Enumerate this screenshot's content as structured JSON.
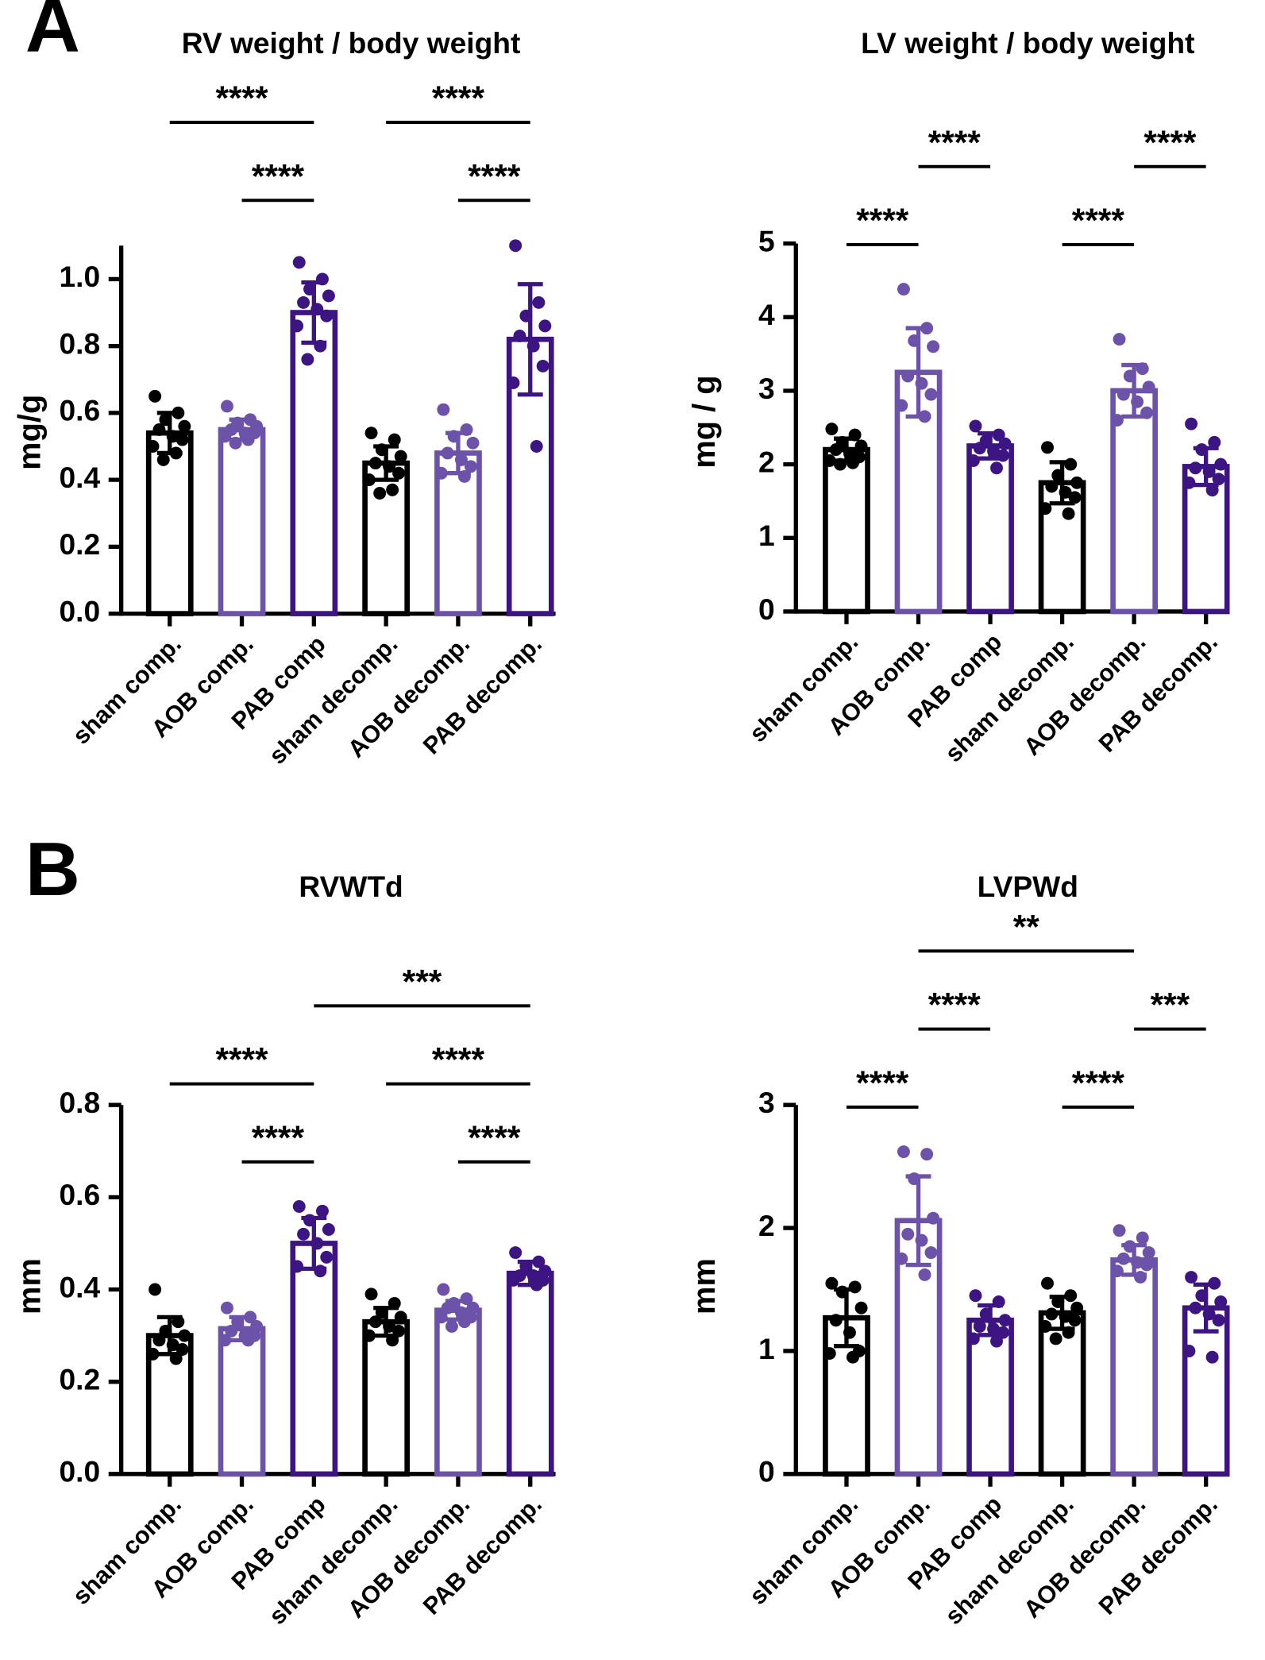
{
  "chart_data": [
    {
      "type": "bar",
      "panel_label": "A",
      "title": "RV weight / body weight",
      "y_label": "mg/g",
      "categories": [
        "sham comp.",
        "AOB comp.",
        "PAB comp",
        "sham decomp.",
        "AOB decomp.",
        "PAB decomp."
      ],
      "colors": [
        "#000000",
        "#6c52a8",
        "#3c1582",
        "#000000",
        "#6c52a8",
        "#3c1582"
      ],
      "values": [
        0.54,
        0.55,
        0.9,
        0.45,
        0.48,
        0.82
      ],
      "errors": [
        0.06,
        0.03,
        0.09,
        0.05,
        0.06,
        0.165
      ],
      "points": [
        [
          0.65,
          0.6,
          0.58,
          0.56,
          0.55,
          0.53,
          0.52,
          0.5,
          0.48,
          0.46
        ],
        [
          0.62,
          0.58,
          0.57,
          0.56,
          0.55,
          0.54,
          0.54,
          0.53,
          0.52,
          0.51
        ],
        [
          1.05,
          1.0,
          0.97,
          0.95,
          0.93,
          0.91,
          0.89,
          0.86,
          0.8,
          0.76
        ],
        [
          0.54,
          0.52,
          0.49,
          0.47,
          0.45,
          0.44,
          0.42,
          0.4,
          0.37,
          0.36
        ],
        [
          0.61,
          0.55,
          0.53,
          0.51,
          0.48,
          0.46,
          0.44,
          0.42,
          0.41
        ],
        [
          1.1,
          0.93,
          0.89,
          0.86,
          0.83,
          0.8,
          0.74,
          0.69,
          0.5
        ]
      ],
      "ylim": [
        0,
        1.1
      ],
      "yticks": [
        {
          "value": 0,
          "label": "0.0"
        },
        0.2,
        0.4,
        0.6,
        0.8,
        {
          "value": 1,
          "label": "1.0"
        }
      ],
      "brackets": [
        {
          "from": "AOB comp.",
          "to": "PAB comp",
          "label": "****"
        },
        {
          "from": "AOB decomp.",
          "to": "PAB decomp.",
          "label": "****"
        },
        {
          "from": "sham comp.",
          "to": "PAB comp",
          "label": "****"
        },
        {
          "from": "sham decomp.",
          "to": "PAB decomp.",
          "label": "****"
        }
      ]
    },
    {
      "type": "bar",
      "title": "LV weight / body weight",
      "y_label": "mg / g",
      "categories": [
        "sham comp.",
        "AOB comp.",
        "PAB comp",
        "sham decomp.",
        "AOB decomp.",
        "PAB decomp."
      ],
      "colors": [
        "#000000",
        "#6c52a8",
        "#3c1582",
        "#000000",
        "#6c52a8",
        "#3c1582"
      ],
      "values": [
        2.2,
        3.25,
        2.25,
        1.75,
        3.0,
        1.97
      ],
      "errors": [
        0.15,
        0.6,
        0.17,
        0.28,
        0.35,
        0.25
      ],
      "points": [
        [
          2.48,
          2.4,
          2.3,
          2.25,
          2.2,
          2.15,
          2.1,
          2.05,
          2.02,
          2.0
        ],
        [
          4.38,
          3.85,
          3.68,
          3.6,
          3.2,
          3.1,
          2.95,
          2.8,
          2.65
        ],
        [
          2.52,
          2.4,
          2.32,
          2.28,
          2.22,
          2.18,
          2.12,
          2.05,
          1.95
        ],
        [
          2.23,
          2.0,
          1.85,
          1.75,
          1.7,
          1.62,
          1.55,
          1.4,
          1.33
        ],
        [
          3.7,
          3.3,
          3.2,
          3.05,
          2.95,
          2.85,
          2.7,
          2.6
        ],
        [
          2.55,
          2.3,
          2.2,
          2.0,
          1.95,
          1.9,
          1.8,
          1.75,
          1.65
        ]
      ],
      "ylim": [
        0,
        5
      ],
      "yticks": [
        0,
        1,
        2,
        3,
        4,
        5
      ],
      "brackets": [
        {
          "from": "sham comp.",
          "to": "AOB comp.",
          "label": "****"
        },
        {
          "from": "sham decomp.",
          "to": "AOB decomp.",
          "label": "****"
        },
        {
          "from": "AOB comp.",
          "to": "PAB comp",
          "label": "****"
        },
        {
          "from": "AOB decomp.",
          "to": "PAB decomp.",
          "label": "****"
        }
      ]
    },
    {
      "type": "bar",
      "panel_label": "B",
      "title": "RVWTd",
      "y_label": "mm",
      "categories": [
        "sham comp.",
        "AOB comp.",
        "PAB comp",
        "sham decomp.",
        "AOB decomp.",
        "PAB decomp."
      ],
      "colors": [
        "#000000",
        "#6c52a8",
        "#3c1582",
        "#000000",
        "#6c52a8",
        "#3c1582"
      ],
      "values": [
        0.3,
        0.315,
        0.5,
        0.33,
        0.355,
        0.435
      ],
      "errors": [
        0.04,
        0.025,
        0.055,
        0.03,
        0.02,
        0.025
      ],
      "points": [
        [
          0.4,
          0.33,
          0.31,
          0.3,
          0.29,
          0.28,
          0.27,
          0.26,
          0.25
        ],
        [
          0.36,
          0.34,
          0.33,
          0.32,
          0.31,
          0.3,
          0.3,
          0.29,
          0.29
        ],
        [
          0.58,
          0.57,
          0.55,
          0.53,
          0.52,
          0.5,
          0.47,
          0.45,
          0.44
        ],
        [
          0.39,
          0.37,
          0.35,
          0.34,
          0.33,
          0.32,
          0.31,
          0.3,
          0.29
        ],
        [
          0.4,
          0.38,
          0.37,
          0.36,
          0.36,
          0.35,
          0.34,
          0.34,
          0.33,
          0.32
        ],
        [
          0.48,
          0.46,
          0.45,
          0.44,
          0.43,
          0.43,
          0.42,
          0.42,
          0.41
        ]
      ],
      "ylim": [
        0,
        0.8
      ],
      "yticks": [
        {
          "value": 0,
          "label": "0.0"
        },
        0.2,
        0.4,
        0.6,
        0.8
      ],
      "brackets": [
        {
          "from": "AOB comp.",
          "to": "PAB comp",
          "label": "****"
        },
        {
          "from": "AOB decomp.",
          "to": "PAB decomp.",
          "label": "****"
        },
        {
          "from": "sham comp.",
          "to": "PAB comp",
          "label": "****"
        },
        {
          "from": "sham decomp.",
          "to": "PAB decomp.",
          "label": "****"
        },
        {
          "from": "PAB comp",
          "to": "PAB decomp.",
          "label": "***"
        }
      ]
    },
    {
      "type": "bar",
      "title": "LVPWd",
      "y_label": "mm",
      "categories": [
        "sham comp.",
        "AOB comp.",
        "PAB comp",
        "sham decomp.",
        "AOB decomp.",
        "PAB decomp."
      ],
      "colors": [
        "#000000",
        "#6c52a8",
        "#3c1582",
        "#000000",
        "#6c52a8",
        "#3c1582"
      ],
      "values": [
        1.27,
        2.06,
        1.25,
        1.31,
        1.74,
        1.35
      ],
      "errors": [
        0.23,
        0.36,
        0.12,
        0.13,
        0.12,
        0.19
      ],
      "points": [
        [
          1.55,
          1.52,
          1.48,
          1.35,
          1.25,
          1.15,
          1.0,
          0.98,
          0.95
        ],
        [
          2.62,
          2.6,
          2.4,
          2.08,
          1.95,
          1.9,
          1.8,
          1.75,
          1.62
        ],
        [
          1.45,
          1.4,
          1.3,
          1.25,
          1.2,
          1.18,
          1.15,
          1.1,
          1.08
        ],
        [
          1.55,
          1.45,
          1.4,
          1.35,
          1.3,
          1.28,
          1.25,
          1.2,
          1.15,
          1.1
        ],
        [
          1.98,
          1.92,
          1.85,
          1.8,
          1.75,
          1.72,
          1.7,
          1.65,
          1.6
        ],
        [
          1.6,
          1.55,
          1.45,
          1.4,
          1.35,
          1.3,
          1.25,
          1.0,
          0.95
        ]
      ],
      "ylim": [
        0,
        3
      ],
      "yticks": [
        0,
        1,
        2,
        3
      ],
      "brackets": [
        {
          "from": "sham comp.",
          "to": "AOB comp.",
          "label": "****"
        },
        {
          "from": "sham decomp.",
          "to": "AOB decomp.",
          "label": "****"
        },
        {
          "from": "AOB comp.",
          "to": "PAB comp",
          "label": "****"
        },
        {
          "from": "AOB decomp.",
          "to": "PAB decomp.",
          "label": "***"
        },
        {
          "from": "AOB comp.",
          "to": "AOB decomp.",
          "label": "**"
        }
      ]
    }
  ]
}
